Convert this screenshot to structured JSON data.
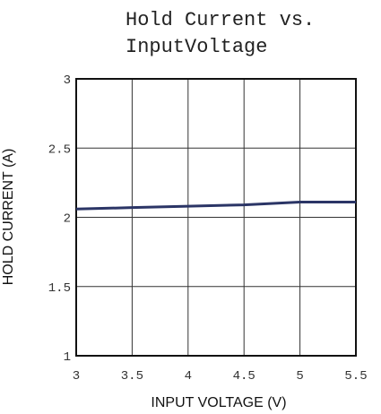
{
  "chart_data": {
    "type": "line",
    "title_lines": [
      "Hold Current vs.",
      "InputVoltage"
    ],
    "xlabel": "INPUT VOLTAGE (V)",
    "ylabel": "HOLD CURRENT (A)",
    "xlim": [
      3,
      5.5
    ],
    "ylim": [
      1,
      3
    ],
    "x_ticks": [
      "3",
      "3.5",
      "4",
      "4.5",
      "5",
      "5.5"
    ],
    "y_ticks": [
      "1",
      "1.5",
      "2",
      "2.5",
      "3"
    ],
    "grid": true,
    "series": [
      {
        "x": [
          3,
          3.5,
          4,
          4.5,
          5,
          5.5
        ],
        "y": [
          2.06,
          2.07,
          2.08,
          2.09,
          2.11,
          2.11
        ],
        "color": "#2b3566"
      }
    ]
  }
}
